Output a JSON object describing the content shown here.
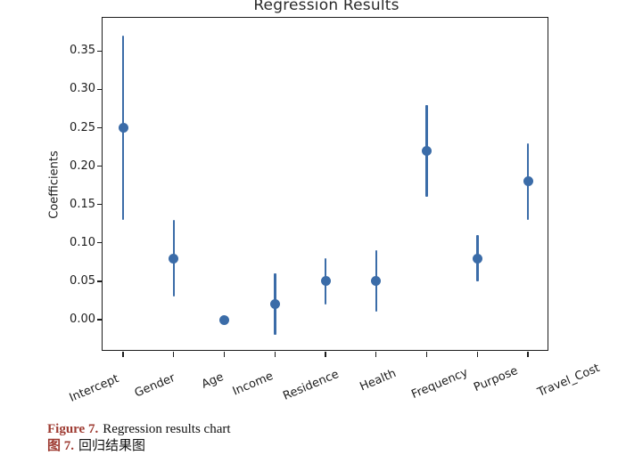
{
  "chart_data": {
    "type": "scatter",
    "title": "Regression Results",
    "ylabel": "Coefficients",
    "xlabel": "",
    "categories": [
      "Intercept",
      "Gender",
      "Age",
      "Income",
      "Residence",
      "Health",
      "Frequency",
      "Purpose",
      "Travel_Cost"
    ],
    "series": [
      {
        "name": "coefficient",
        "values": [
          0.25,
          0.08,
          0.0,
          0.02,
          0.05,
          0.05,
          0.22,
          0.08,
          0.18
        ],
        "ci_low": [
          0.13,
          0.03,
          0.0,
          -0.02,
          0.02,
          0.01,
          0.16,
          0.05,
          0.13
        ],
        "ci_high": [
          0.37,
          0.13,
          0.0,
          0.06,
          0.08,
          0.09,
          0.28,
          0.11,
          0.23
        ]
      }
    ],
    "ytick_labels": [
      "0.35",
      "0.30",
      "0.25",
      "0.20",
      "0.15",
      "0.10",
      "0.05",
      "0.00"
    ],
    "ytick_values": [
      0.35,
      0.3,
      0.25,
      0.2,
      0.15,
      0.1,
      0.05,
      0.0
    ],
    "ylim": [
      -0.042,
      0.393
    ],
    "grid": false,
    "legend": "none",
    "marker": "circle",
    "error_bars": true,
    "point_color": "#3B6CA8"
  },
  "caption": {
    "en_label": "Figure 7.",
    "en_text": "Regression results chart",
    "zh_label": "图 7.",
    "zh_text": "回归结果图",
    "label_color": "#9E3B32"
  }
}
